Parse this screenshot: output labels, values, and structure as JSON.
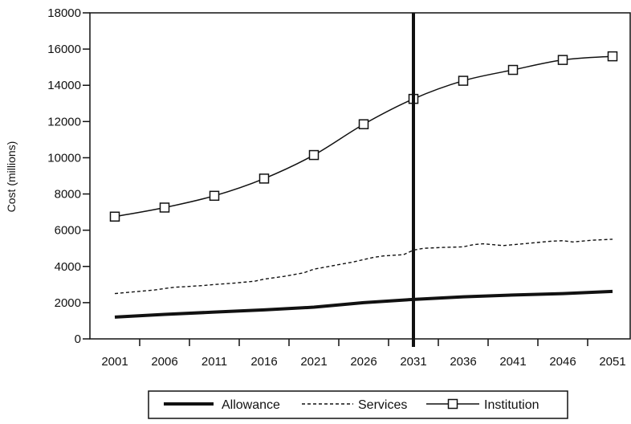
{
  "chart_data": {
    "type": "line",
    "title": "",
    "xlabel": "",
    "ylabel": "Cost (millions)",
    "x": [
      2001,
      2006,
      2011,
      2016,
      2021,
      2026,
      2031,
      2036,
      2041,
      2046,
      2051
    ],
    "x_tick_labels": [
      "2001",
      "2006",
      "2011",
      "2016",
      "2021",
      "2026",
      "2031",
      "2036",
      "2041",
      "2046",
      "2051"
    ],
    "ylim": [
      0,
      18000
    ],
    "y_tick_labels": [
      "0",
      "2000",
      "4000",
      "6000",
      "8000",
      "10000",
      "12000",
      "14000",
      "16000",
      "18000"
    ],
    "vertical_marker_x": 2031,
    "grid": false,
    "legend_position": "bottom",
    "series": [
      {
        "name": "Allowance",
        "style": "thick-solid",
        "x": [
          2001,
          2006,
          2011,
          2016,
          2021,
          2026,
          2031,
          2036,
          2041,
          2046,
          2051
        ],
        "values": [
          1200,
          1350,
          1480,
          1600,
          1750,
          2000,
          2180,
          2320,
          2420,
          2500,
          2620
        ]
      },
      {
        "name": "Services",
        "style": "dashed",
        "x": [
          2001,
          2003,
          2005,
          2006,
          2007,
          2008,
          2010,
          2011,
          2013,
          2015,
          2016,
          2018,
          2020,
          2021,
          2023,
          2025,
          2026,
          2027,
          2028,
          2030,
          2031,
          2032,
          2034,
          2036,
          2037,
          2038,
          2040,
          2041,
          2043,
          2045,
          2046,
          2047,
          2049,
          2051
        ],
        "values": [
          2500,
          2600,
          2700,
          2780,
          2850,
          2880,
          2950,
          3000,
          3080,
          3180,
          3300,
          3450,
          3650,
          3850,
          4050,
          4250,
          4380,
          4500,
          4580,
          4650,
          4900,
          5000,
          5050,
          5080,
          5200,
          5250,
          5150,
          5200,
          5300,
          5400,
          5420,
          5350,
          5450,
          5500
        ]
      },
      {
        "name": "Institution",
        "style": "solid-square-markers",
        "x": [
          2001,
          2006,
          2011,
          2016,
          2021,
          2026,
          2031,
          2036,
          2041,
          2046,
          2051
        ],
        "values": [
          6750,
          7250,
          7900,
          8850,
          10150,
          11850,
          13250,
          14250,
          14850,
          15400,
          15600
        ]
      }
    ]
  }
}
